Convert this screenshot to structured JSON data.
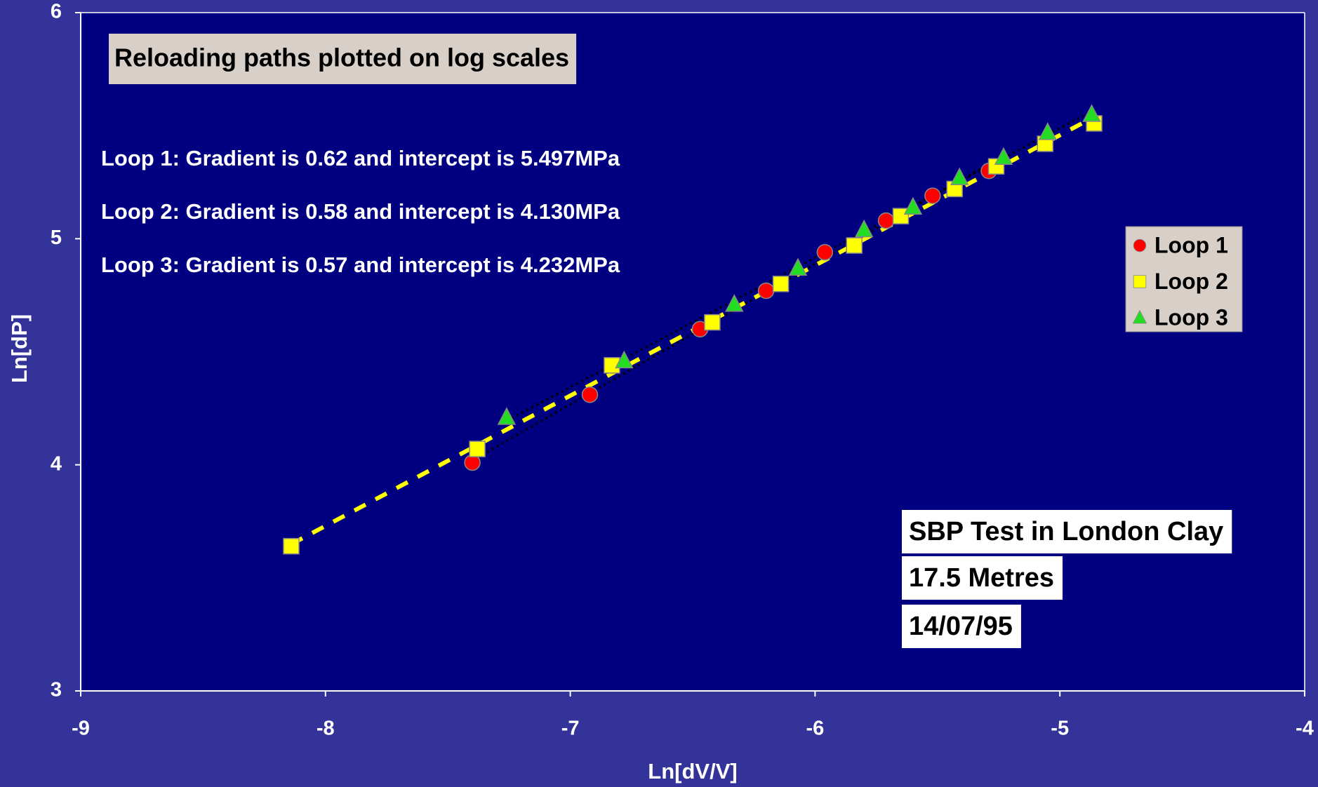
{
  "chart_data": {
    "type": "scatter",
    "title": "Reloading paths plotted on log scales",
    "xlabel": "Ln[dV/V]",
    "ylabel": "Ln[dP]",
    "xlim": [
      -9,
      -4
    ],
    "xticks": [
      -9,
      -8,
      -7,
      -6,
      -5,
      -4
    ],
    "ylim": [
      3,
      6
    ],
    "yticks": [
      3,
      4,
      5,
      6
    ],
    "legend": "right",
    "annotations": [
      "Loop 1: Gradient is 0.62 and intercept is 5.497MPa",
      "Loop 2: Gradient is 0.58 and intercept is 4.130MPa",
      "Loop 3: Gradient is 0.57 and intercept is 4.232MPa"
    ],
    "info": [
      "SBP Test in London Clay",
      "17.5 Metres",
      "14/07/95"
    ],
    "series": [
      {
        "name": "Loop 1",
        "color": "#ff0000",
        "marker": "circle",
        "trendline": {
          "color": "#000000",
          "dash": "dotted"
        },
        "x": [
          -7.4,
          -6.92,
          -6.47,
          -6.2,
          -5.96,
          -5.71,
          -5.52,
          -5.29
        ],
        "values": [
          4.01,
          4.31,
          4.6,
          4.77,
          4.94,
          5.08,
          5.19,
          5.3
        ]
      },
      {
        "name": "Loop 2",
        "color": "#ffff00",
        "marker": "square",
        "trendline": {
          "color": "#ffff00",
          "dash": "dashed"
        },
        "x": [
          -8.14,
          -7.38,
          -6.83,
          -6.42,
          -6.14,
          -5.84,
          -5.65,
          -5.43,
          -5.26,
          -5.06,
          -4.86
        ],
        "values": [
          3.64,
          4.07,
          4.44,
          4.63,
          4.8,
          4.97,
          5.1,
          5.22,
          5.32,
          5.42,
          5.51
        ]
      },
      {
        "name": "Loop 3",
        "color": "#22dd22",
        "marker": "triangle",
        "trendline": {
          "color": "#000000",
          "dash": "dotted"
        },
        "x": [
          -7.26,
          -6.78,
          -6.33,
          -6.07,
          -5.8,
          -5.6,
          -5.41,
          -5.23,
          -5.05,
          -4.87
        ],
        "values": [
          4.21,
          4.46,
          4.71,
          4.87,
          5.04,
          5.14,
          5.27,
          5.36,
          5.47,
          5.55
        ]
      }
    ]
  }
}
